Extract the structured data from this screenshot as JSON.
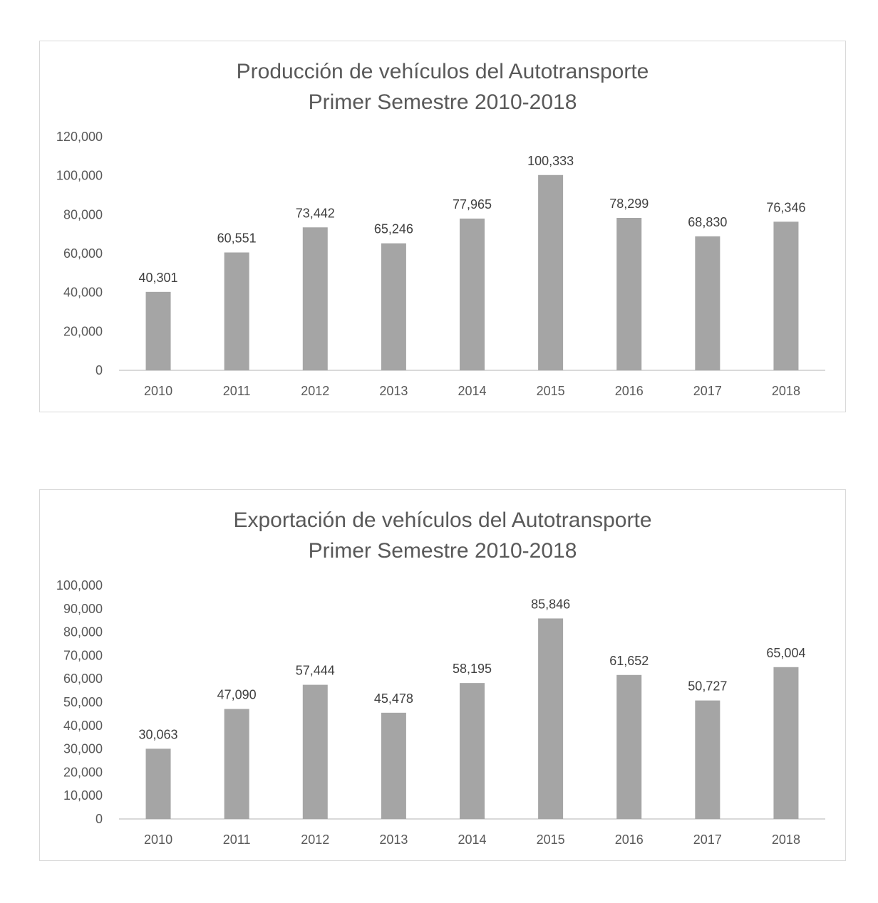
{
  "chart_data": [
    {
      "type": "bar",
      "title": "Producción de vehículos del Autotransporte",
      "subtitle": "Primer Semestre 2010-2018",
      "categories": [
        "2010",
        "2011",
        "2012",
        "2013",
        "2014",
        "2015",
        "2016",
        "2017",
        "2018"
      ],
      "values": [
        40301,
        60551,
        73442,
        65246,
        77965,
        100333,
        78299,
        68830,
        76346
      ],
      "value_labels": [
        "40,301",
        "60,551",
        "73,442",
        "65,246",
        "77,965",
        "100,333",
        "78,299",
        "68,830",
        "76,346"
      ],
      "ylim": [
        0,
        120000
      ],
      "yticks": [
        0,
        20000,
        40000,
        60000,
        80000,
        100000,
        120000
      ],
      "ytick_labels": [
        "0",
        "20,000",
        "40,000",
        "60,000",
        "80,000",
        "100,000",
        "120,000"
      ],
      "xlabel": "",
      "ylabel": "",
      "grid": false,
      "bar_color": "#a5a5a5"
    },
    {
      "type": "bar",
      "title": "Exportación de vehículos del Autotransporte",
      "subtitle": "Primer Semestre 2010-2018",
      "categories": [
        "2010",
        "2011",
        "2012",
        "2013",
        "2014",
        "2015",
        "2016",
        "2017",
        "2018"
      ],
      "values": [
        30063,
        47090,
        57444,
        45478,
        58195,
        85846,
        61652,
        50727,
        65004
      ],
      "value_labels": [
        "30,063",
        "47,090",
        "57,444",
        "45,478",
        "58,195",
        "85,846",
        "61,652",
        "50,727",
        "65,004"
      ],
      "ylim": [
        0,
        100000
      ],
      "yticks": [
        0,
        10000,
        20000,
        30000,
        40000,
        50000,
        60000,
        70000,
        80000,
        90000,
        100000
      ],
      "ytick_labels": [
        "0",
        "10,000",
        "20,000",
        "30,000",
        "40,000",
        "50,000",
        "60,000",
        "70,000",
        "80,000",
        "90,000",
        "100,000"
      ],
      "xlabel": "",
      "ylabel": "",
      "grid": false,
      "bar_color": "#a5a5a5"
    }
  ]
}
